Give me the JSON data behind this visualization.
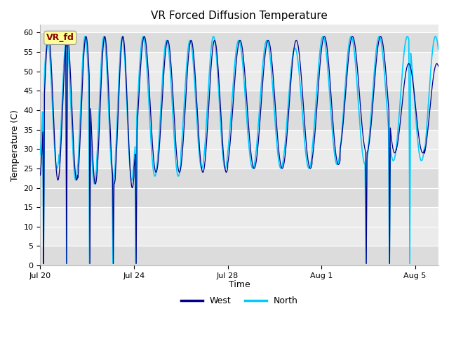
{
  "title": "VR Forced Diffusion Temperature",
  "xlabel": "Time",
  "ylabel": "Temperature (C)",
  "ylim": [
    0,
    62
  ],
  "yticks": [
    0,
    5,
    10,
    15,
    20,
    25,
    30,
    35,
    40,
    45,
    50,
    55,
    60
  ],
  "color_west": "#00008B",
  "color_north": "#00CCFF",
  "bg_plot_light": "#EBEBEB",
  "bg_plot_dark": "#DCDCDC",
  "bg_figure": "#FFFFFF",
  "annotation_text": "VR_fd",
  "annotation_color": "#8B0000",
  "annotation_bg": "#FFFF99",
  "legend_west": "West",
  "legend_north": "North",
  "x_ticks_labels": [
    "Jul 20",
    "Jul 24",
    "Jul 28",
    "Aug 1",
    "Aug 5"
  ],
  "x_ticks_days": [
    0,
    4,
    8,
    12,
    16
  ]
}
